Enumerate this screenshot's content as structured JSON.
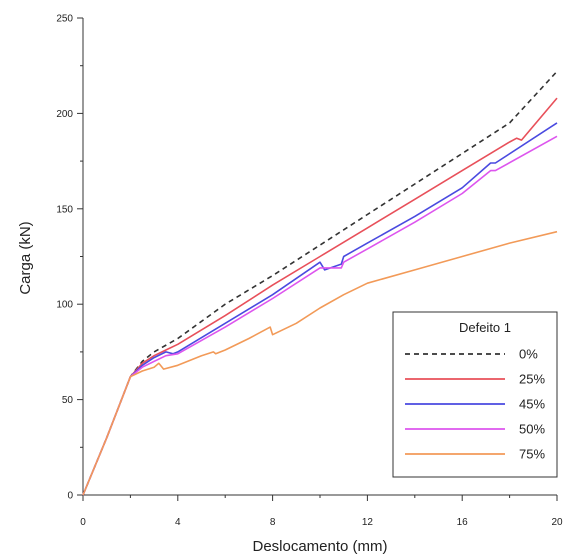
{
  "chart_data": {
    "type": "line",
    "title": "",
    "xlabel": "Deslocamento (mm)",
    "ylabel": "Carga (kN)",
    "xlim": [
      0,
      20
    ],
    "ylim": [
      0,
      250
    ],
    "xticks": [
      "0",
      "4",
      "8",
      "12",
      "16",
      "20"
    ],
    "yticks": [
      "0",
      "50",
      "100",
      "150",
      "200",
      "250"
    ],
    "grid": false,
    "legend": {
      "title": "Defeito 1",
      "placement": "bottom-right"
    },
    "series": [
      {
        "name": "0%",
        "color": "#333333",
        "dash": "dashed",
        "points": [
          [
            0,
            0
          ],
          [
            1,
            30
          ],
          [
            2,
            62
          ],
          [
            2.5,
            70
          ],
          [
            3,
            75
          ],
          [
            4,
            82
          ],
          [
            6,
            100
          ],
          [
            8,
            115
          ],
          [
            10,
            131
          ],
          [
            12,
            147
          ],
          [
            14,
            163
          ],
          [
            16,
            179
          ],
          [
            18,
            195
          ],
          [
            20,
            222
          ]
        ]
      },
      {
        "name": "25%",
        "color": "#e8505a",
        "dash": "solid",
        "points": [
          [
            0,
            0
          ],
          [
            1,
            30
          ],
          [
            2,
            62
          ],
          [
            2.5,
            69
          ],
          [
            3,
            73
          ],
          [
            3.5,
            76
          ],
          [
            4,
            79
          ],
          [
            6,
            94
          ],
          [
            8,
            110
          ],
          [
            10,
            125
          ],
          [
            12,
            140
          ],
          [
            14,
            155
          ],
          [
            16,
            170
          ],
          [
            18,
            185
          ],
          [
            18.3,
            187
          ],
          [
            18.5,
            186
          ],
          [
            20,
            208
          ]
        ]
      },
      {
        "name": "45%",
        "color": "#4a4ae0",
        "dash": "solid",
        "points": [
          [
            0,
            0
          ],
          [
            1,
            30
          ],
          [
            2,
            62
          ],
          [
            2.5,
            68
          ],
          [
            3,
            72
          ],
          [
            3.5,
            75
          ],
          [
            3.8,
            74
          ],
          [
            4,
            75
          ],
          [
            6,
            90
          ],
          [
            8,
            105
          ],
          [
            10,
            122
          ],
          [
            10.2,
            118
          ],
          [
            10.9,
            121
          ],
          [
            11,
            125
          ],
          [
            12,
            132
          ],
          [
            14,
            146
          ],
          [
            16,
            161
          ],
          [
            17.2,
            174
          ],
          [
            17.4,
            174
          ],
          [
            20,
            195
          ]
        ]
      },
      {
        "name": "50%",
        "color": "#dd55ee",
        "dash": "solid",
        "points": [
          [
            0,
            0
          ],
          [
            1,
            30
          ],
          [
            2,
            62
          ],
          [
            2.5,
            67
          ],
          [
            3,
            70
          ],
          [
            3.5,
            73
          ],
          [
            4,
            74
          ],
          [
            6,
            88
          ],
          [
            8,
            103
          ],
          [
            10,
            119
          ],
          [
            10.9,
            119
          ],
          [
            11,
            122
          ],
          [
            12,
            129
          ],
          [
            14,
            143
          ],
          [
            16,
            158
          ],
          [
            17.2,
            170
          ],
          [
            17.4,
            170
          ],
          [
            20,
            188
          ]
        ]
      },
      {
        "name": "75%",
        "color": "#f29a58",
        "dash": "solid",
        "points": [
          [
            0,
            0
          ],
          [
            1,
            30
          ],
          [
            2,
            62
          ],
          [
            2.5,
            65
          ],
          [
            3,
            67
          ],
          [
            3.2,
            69
          ],
          [
            3.4,
            66
          ],
          [
            4,
            68
          ],
          [
            5,
            73
          ],
          [
            5.5,
            75
          ],
          [
            5.6,
            74
          ],
          [
            6,
            76
          ],
          [
            7,
            82
          ],
          [
            7.9,
            88
          ],
          [
            8,
            84
          ],
          [
            9,
            90
          ],
          [
            10,
            98
          ],
          [
            11,
            105
          ],
          [
            12,
            111
          ],
          [
            14,
            118
          ],
          [
            16,
            125
          ],
          [
            18,
            132
          ],
          [
            20,
            138
          ]
        ]
      }
    ]
  }
}
